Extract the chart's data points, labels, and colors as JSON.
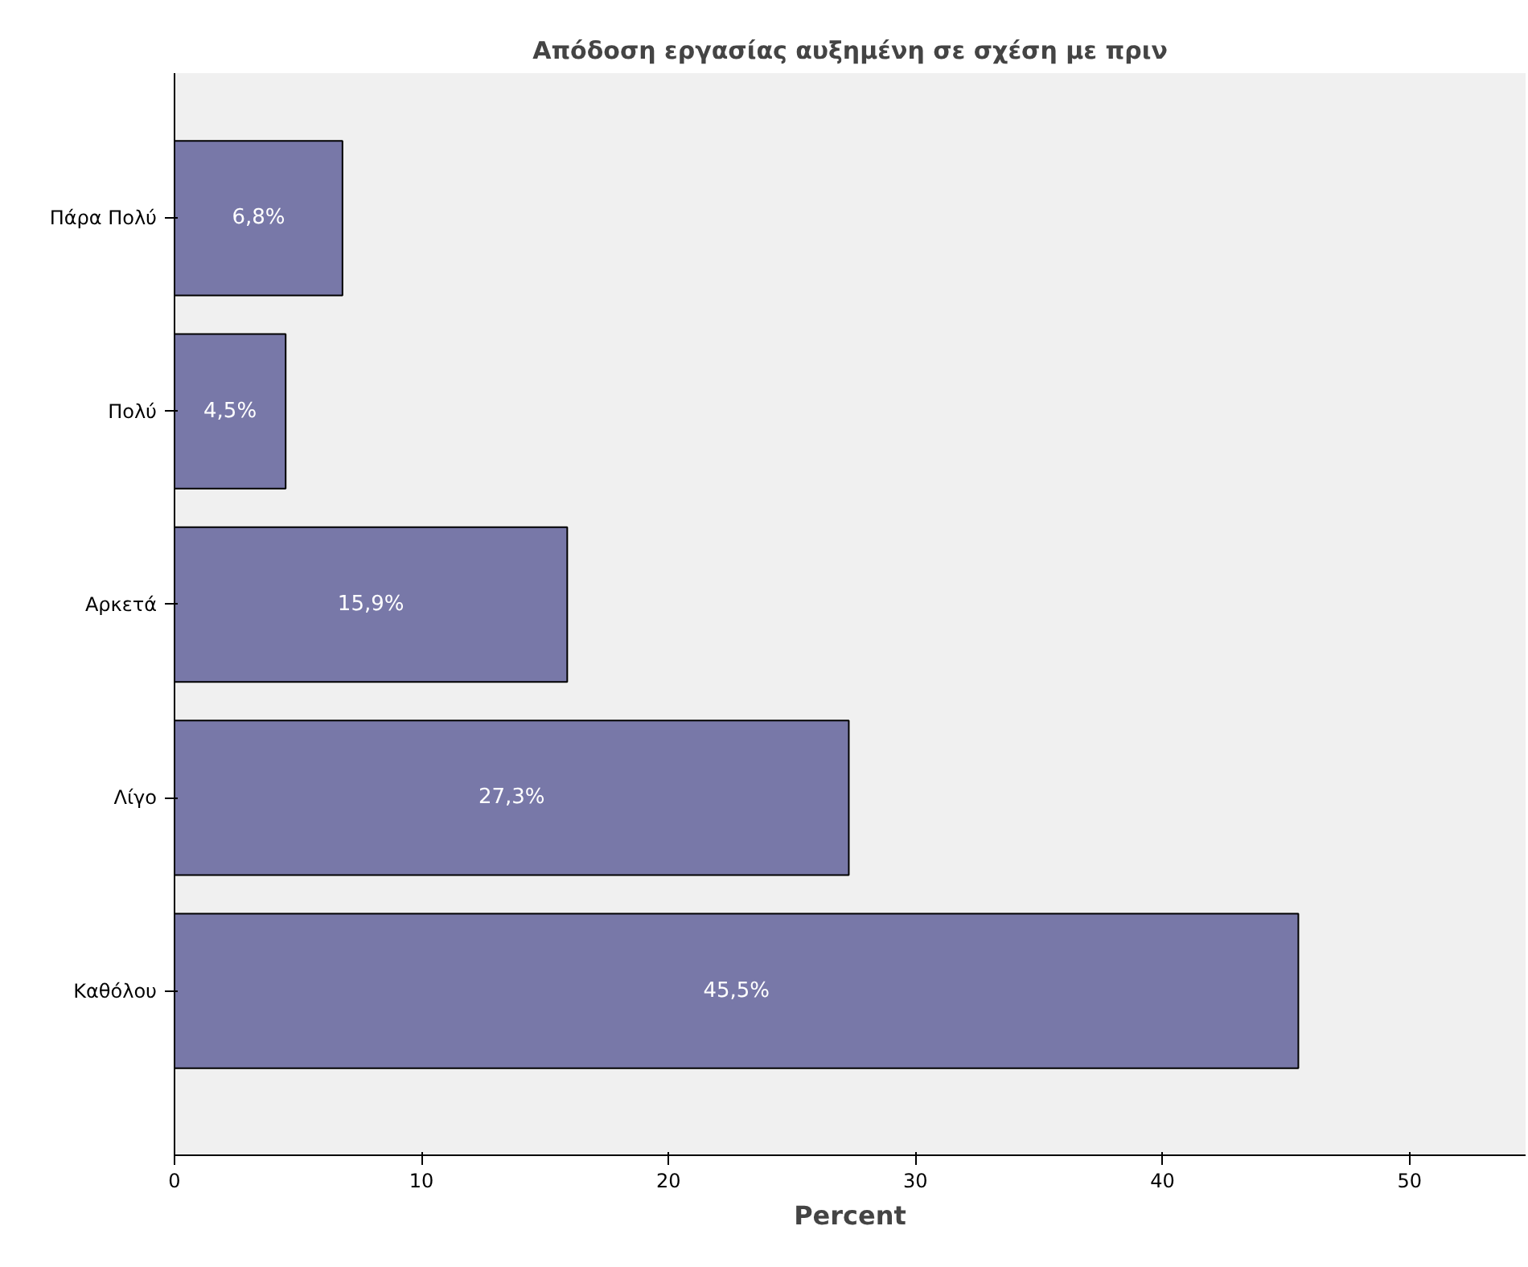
{
  "chart_data": {
    "type": "bar",
    "orientation": "horizontal",
    "title": "Απόδοση εργασίας αυξημένη σε σχέση με πριν",
    "xlabel": "Percent",
    "categories": [
      "Πάρα Πολύ",
      "Πολύ",
      "Αρκετά",
      "Λίγο",
      "Καθόλου"
    ],
    "values": [
      6.8,
      4.5,
      15.9,
      27.3,
      45.5
    ],
    "value_labels": [
      "6,8%",
      "4,5%",
      "15,9%",
      "27,3%",
      "45,5%"
    ],
    "color": "#7878a8",
    "xlim": [
      0,
      54.7
    ],
    "xticks": [
      0,
      10,
      20,
      30,
      40,
      50
    ],
    "grid": false
  }
}
